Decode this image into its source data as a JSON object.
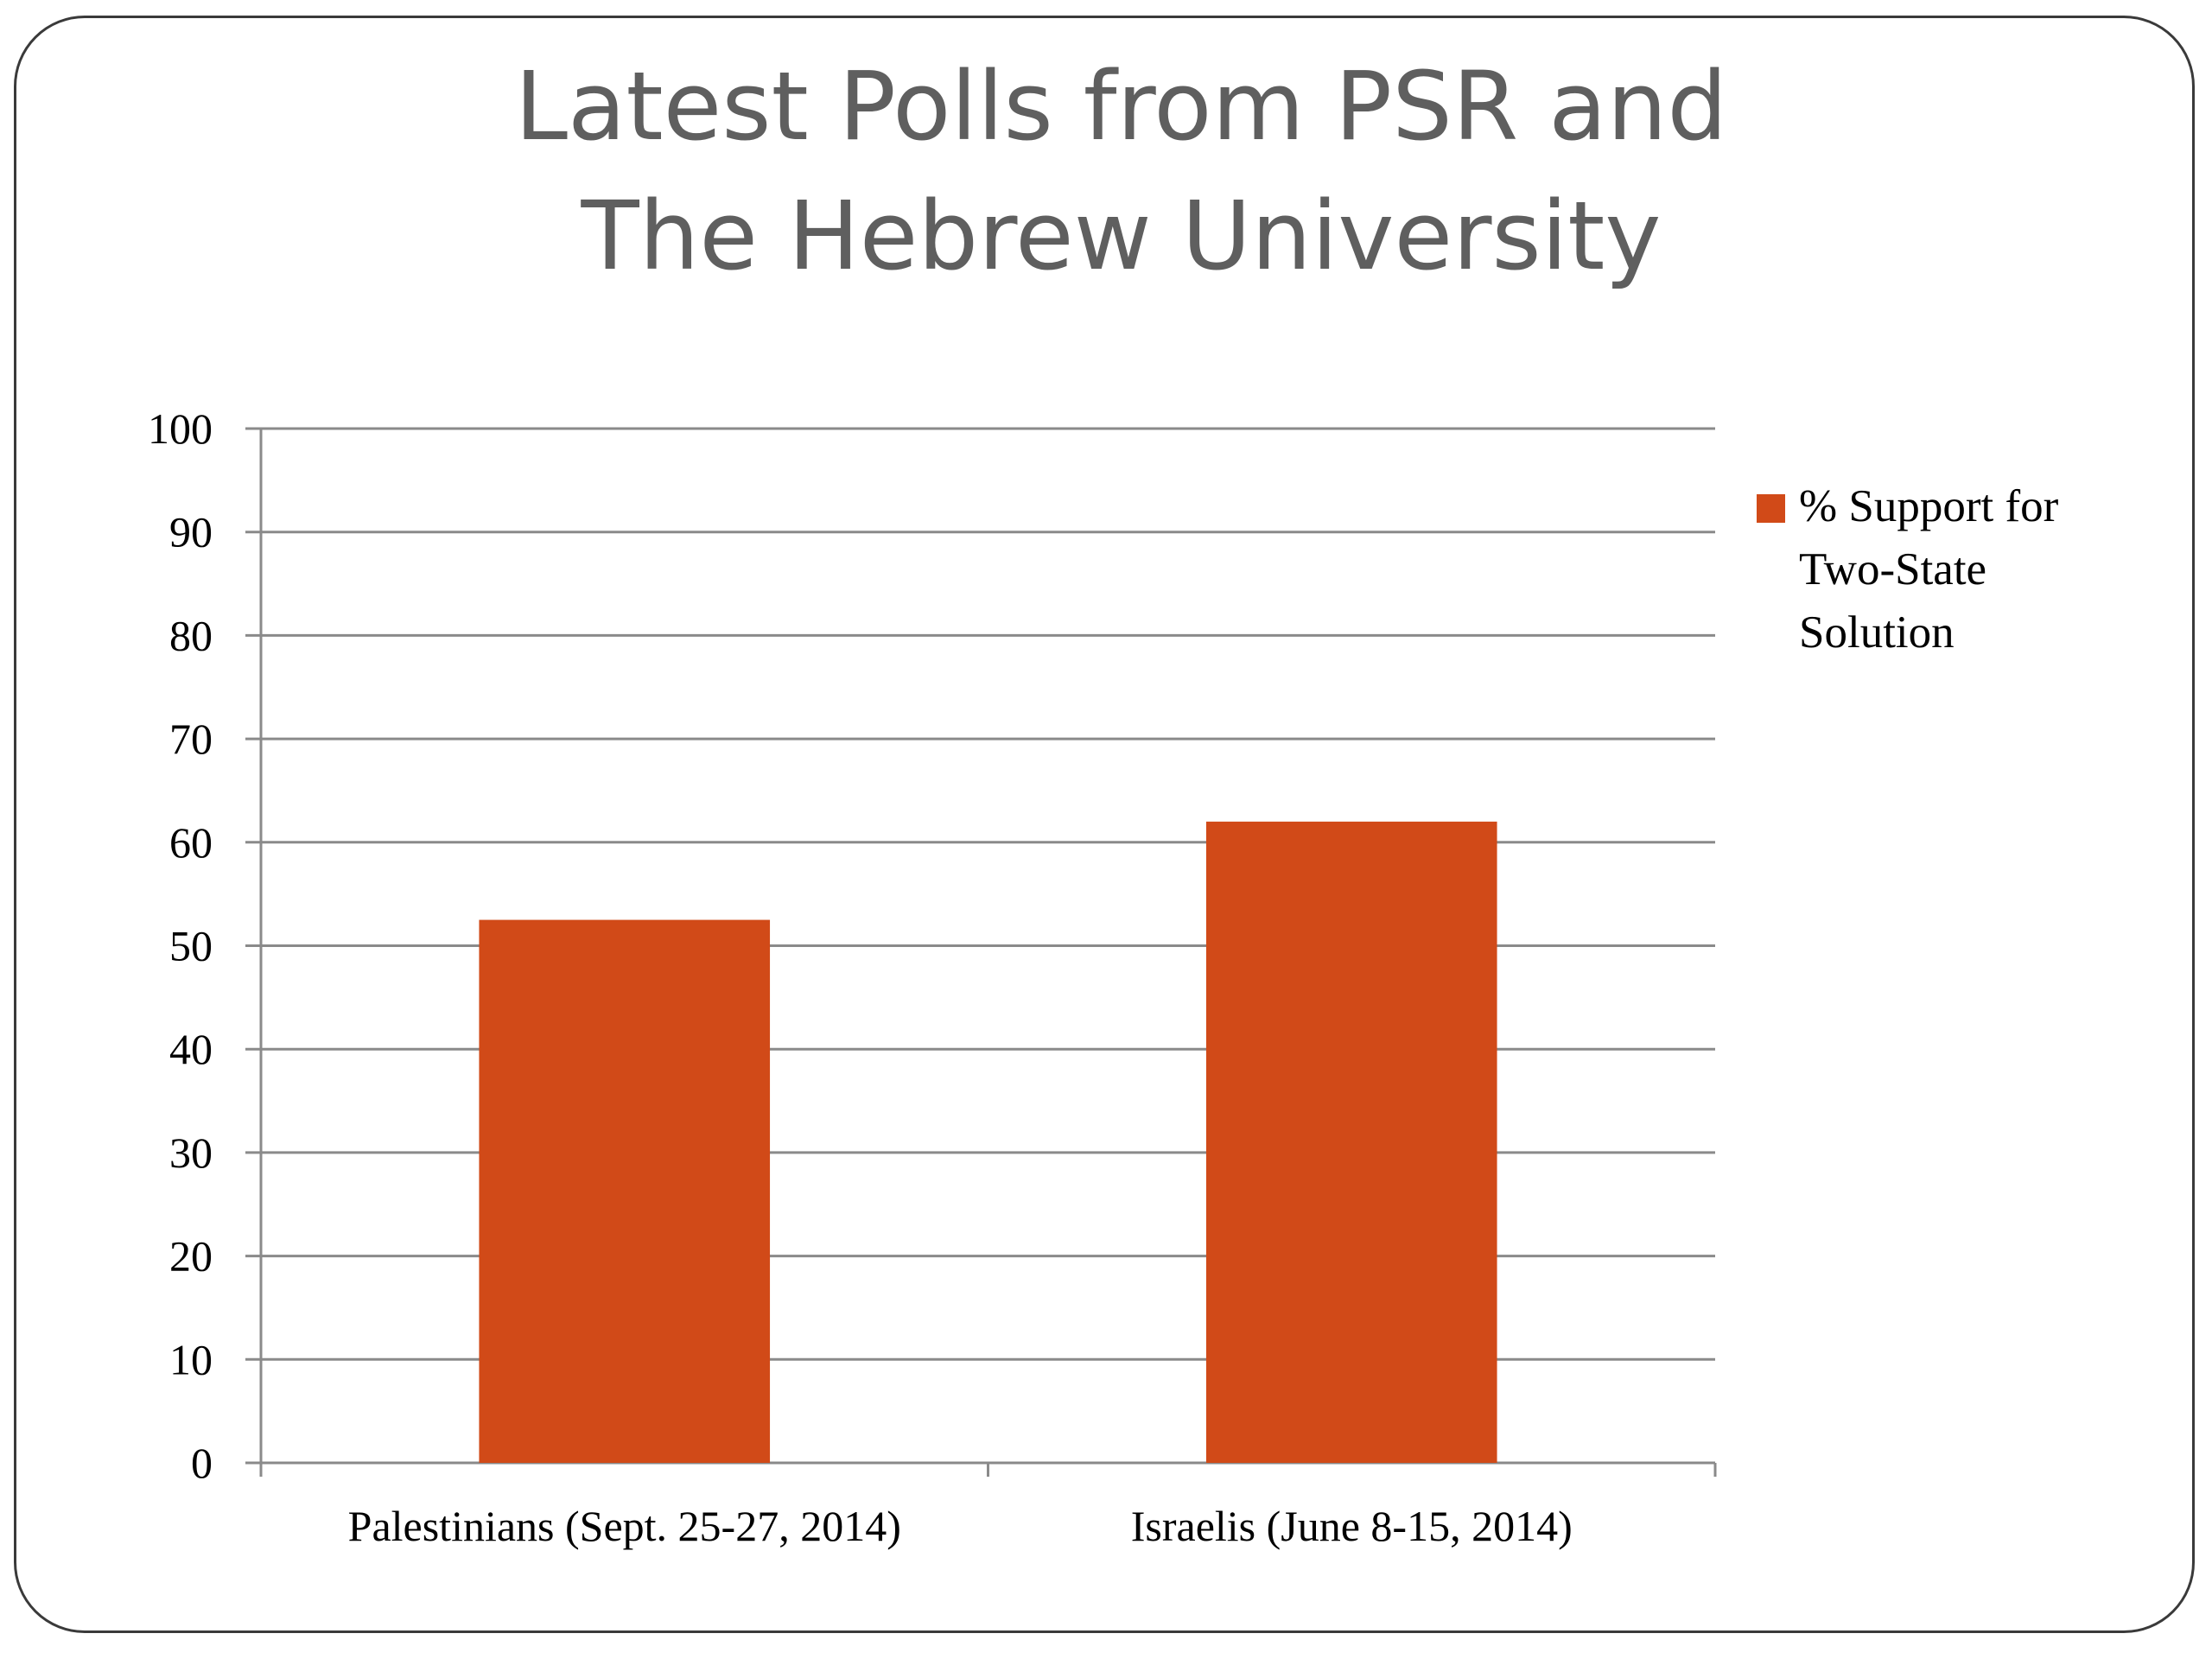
{
  "title": "Latest Polls from PSR and\nThe Hebrew University",
  "colors": {
    "bar": "#d14a18",
    "grid": "#8a8a8a",
    "text": "#000000",
    "title": "#5f5f5f"
  },
  "chart_data": {
    "type": "bar",
    "title": "Latest Polls from PSR and The Hebrew University",
    "categories": [
      "Palestinians (Sept. 25-27, 2014)",
      "Israelis (June 8-15, 2014)"
    ],
    "series": [
      {
        "name": "% Support for Two-State Solution",
        "values": [
          52.5,
          62
        ]
      }
    ],
    "ylim": [
      0,
      100
    ],
    "yticks": [
      0,
      10,
      20,
      30,
      40,
      50,
      60,
      70,
      80,
      90,
      100
    ],
    "grid": true,
    "legend_position": "right",
    "legend_lines": [
      "% Support for",
      "Two-State",
      "Solution"
    ]
  }
}
